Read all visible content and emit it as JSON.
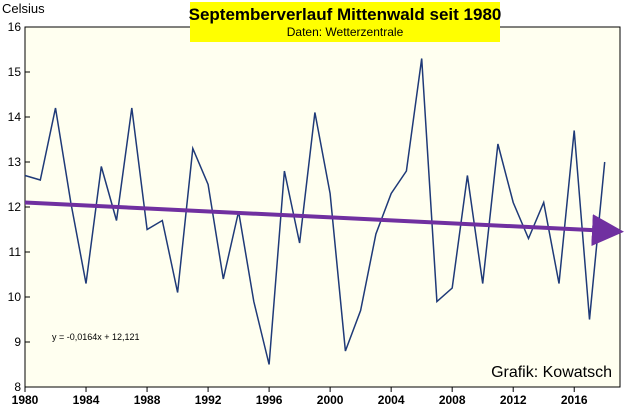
{
  "chart_data": {
    "type": "line",
    "title": "Septemberverlauf Mittenwald seit 1980",
    "subtitle": "Daten:  Wetterzentrale",
    "ylabel": "Celsius",
    "xlabel": "",
    "ylim": [
      8,
      16
    ],
    "xlim": [
      1980,
      2019
    ],
    "yticks": [
      "8",
      "9",
      "10",
      "11",
      "12",
      "13",
      "14",
      "15",
      "16"
    ],
    "xticks": [
      "1980",
      "1984",
      "1988",
      "1992",
      "1996",
      "2000",
      "2004",
      "2008",
      "2012",
      "2016"
    ],
    "grid": false,
    "series": [
      {
        "color": "#1f3a78",
        "x": [
          1980,
          1981,
          1982,
          1983,
          1984,
          1985,
          1986,
          1987,
          1988,
          1989,
          1990,
          1991,
          1992,
          1993,
          1994,
          1995,
          1996,
          1997,
          1998,
          1999,
          2000,
          2001,
          2002,
          2003,
          2004,
          2005,
          2006,
          2007,
          2008,
          2009,
          2010,
          2011,
          2012,
          2013,
          2014,
          2015,
          2016,
          2017,
          2018
        ],
        "values": [
          12.7,
          12.6,
          14.2,
          12.1,
          10.3,
          12.9,
          11.7,
          14.2,
          11.5,
          11.7,
          10.1,
          13.3,
          12.5,
          10.4,
          11.9,
          9.9,
          8.5,
          12.8,
          11.2,
          14.1,
          12.3,
          8.8,
          9.7,
          11.4,
          12.3,
          12.8,
          15.3,
          9.9,
          10.2,
          12.7,
          10.3,
          13.4,
          12.1,
          11.3,
          12.1,
          10.3,
          13.7,
          9.5,
          13.0
        ]
      }
    ],
    "trendline": {
      "color": "#7030a0",
      "equation_label": "y = -0,0164x + 12,121",
      "start": [
        1980,
        12.1
      ],
      "end": [
        2019,
        11.46
      ]
    },
    "credit": "Grafik: Kowatsch",
    "colors": {
      "plot_background": "#fffff0",
      "title_box": "#ffff00"
    }
  }
}
